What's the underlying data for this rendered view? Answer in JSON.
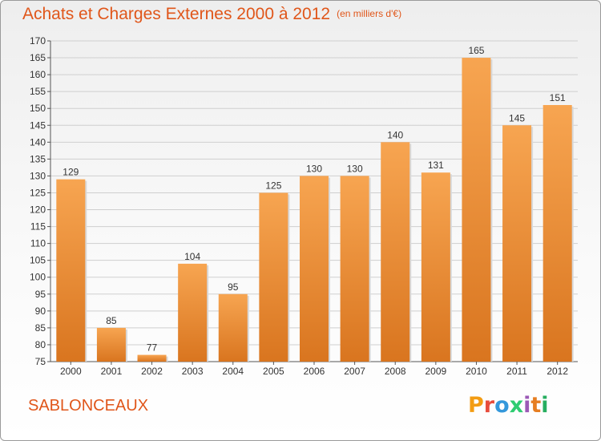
{
  "header": {
    "title": "Achats et Charges Externes 2000 à 2012",
    "unit": "(en milliers d'€)"
  },
  "footer": {
    "place": "SABLONCEAUX",
    "logo_letters": [
      "P",
      "r",
      "o",
      "x",
      "i",
      "t",
      "i"
    ],
    "logo_colors": [
      "#f39c12",
      "#e74c3c",
      "#3498db",
      "#2ecc71",
      "#9b59b6",
      "#e67e22",
      "#27ae60"
    ]
  },
  "colors": {
    "bar_top": "#f7a551",
    "bar_bottom": "#d9751f",
    "grid": "#cfcfcf",
    "text_accent": "#e0561a"
  },
  "chart_data": {
    "type": "bar",
    "title": "Achats et Charges Externes 2000 à 2012",
    "subtitle": "(en milliers d'€)",
    "categories": [
      "2000",
      "2001",
      "2002",
      "2003",
      "2004",
      "2005",
      "2006",
      "2007",
      "2008",
      "2009",
      "2010",
      "2011",
      "2012"
    ],
    "values": [
      129,
      85,
      77,
      104,
      95,
      125,
      130,
      130,
      140,
      131,
      165,
      145,
      151
    ],
    "ylim": [
      75,
      170
    ],
    "yticks": [
      75,
      80,
      85,
      90,
      95,
      100,
      105,
      110,
      115,
      120,
      125,
      130,
      135,
      140,
      145,
      150,
      155,
      160,
      165,
      170
    ],
    "grid": true,
    "xlabel": "",
    "ylabel": ""
  }
}
